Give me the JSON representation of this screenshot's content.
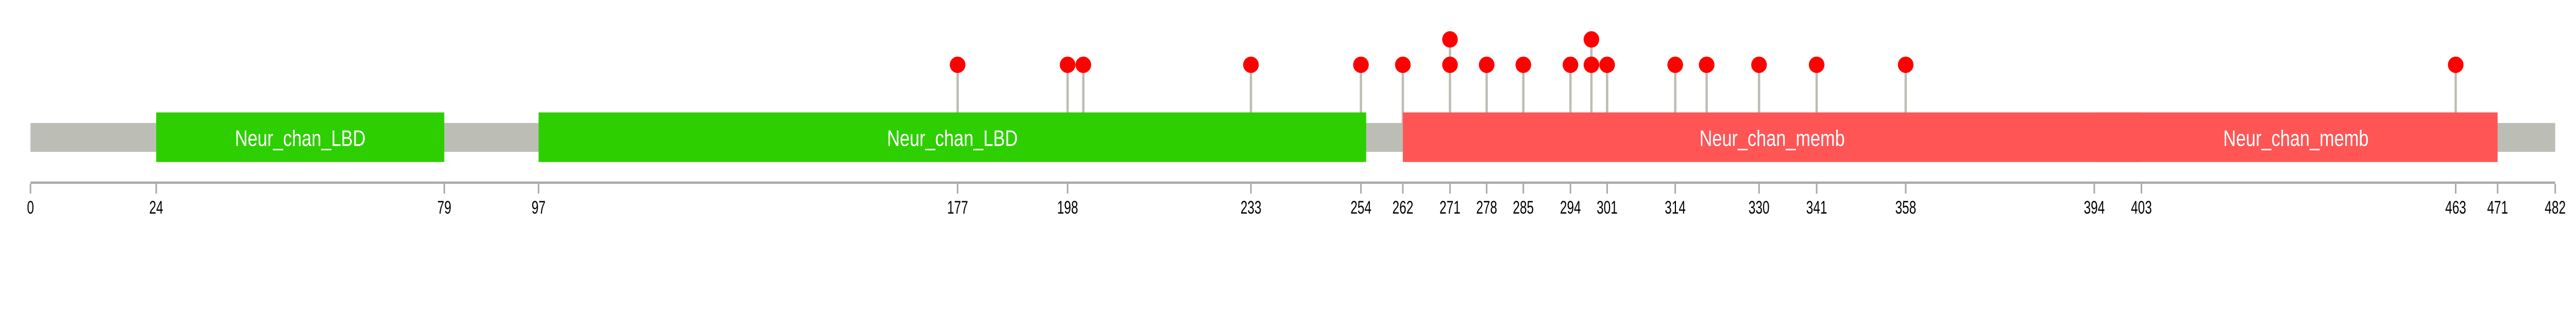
{
  "protein": {
    "length": 482,
    "backbone_color": "#BCBEB6",
    "stem_color": "#BCBEB6",
    "mutation_color": "#FF0000",
    "axis_color": "#AAAAAA"
  },
  "domains": [
    {
      "name": "Neur_chan_LBD",
      "start": 24,
      "end": 79,
      "color": "#2ECF00"
    },
    {
      "name": "Neur_chan_LBD",
      "start": 97,
      "end": 255,
      "color": "#2ECF00"
    },
    {
      "name": "Neur_chan_memb",
      "start": 262,
      "end": 403,
      "color": "#FF5555"
    },
    {
      "name": "Neur_chan_memb",
      "start": 394,
      "end": 471,
      "color": "#FF5555"
    }
  ],
  "mutations": [
    {
      "position": 177,
      "count": 1
    },
    {
      "position": 198,
      "count": 1
    },
    {
      "position": 201,
      "count": 1
    },
    {
      "position": 233,
      "count": 1
    },
    {
      "position": 254,
      "count": 1
    },
    {
      "position": 262,
      "count": 1
    },
    {
      "position": 271,
      "count": 2
    },
    {
      "position": 278,
      "count": 1
    },
    {
      "position": 285,
      "count": 1
    },
    {
      "position": 294,
      "count": 1
    },
    {
      "position": 298,
      "count": 2
    },
    {
      "position": 301,
      "count": 1
    },
    {
      "position": 314,
      "count": 1
    },
    {
      "position": 320,
      "count": 1
    },
    {
      "position": 330,
      "count": 1
    },
    {
      "position": 341,
      "count": 1
    },
    {
      "position": 358,
      "count": 1
    },
    {
      "position": 463,
      "count": 1
    }
  ],
  "axis_ticks": [
    "0",
    "24",
    "79",
    "97",
    "177",
    "198",
    "233",
    "254",
    "262",
    "271",
    "278",
    "285",
    "294",
    "301",
    "314",
    "330",
    "341",
    "358",
    "394",
    "403",
    "463",
    "471",
    "482"
  ]
}
